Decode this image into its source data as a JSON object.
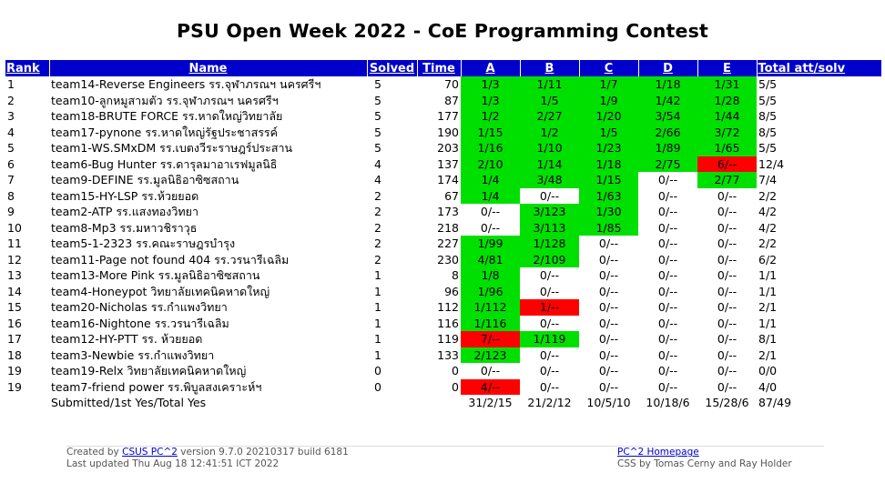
{
  "title": "PSU Open Week 2022 - CoE Programming Contest",
  "headers": [
    "Rank",
    "Name",
    "Solved",
    "Time",
    "A",
    "B",
    "C",
    "D",
    "E",
    "Total att/solv"
  ],
  "rows": [
    {
      "rank": "1",
      "name": "team14-Reverse Engineers รร.จุฬาภรณฯ นครศรีฯ",
      "solved": "5",
      "time": "70",
      "p": [
        "1/3",
        "1/11",
        "1/7",
        "1/18",
        "1/31"
      ],
      "s": [
        "y",
        "y",
        "y",
        "y",
        "y"
      ],
      "total": "5/5"
    },
    {
      "rank": "2",
      "name": "team10-ลูกหมูสามตัว รร.จุฬาภรณฯ นครศรีฯ",
      "solved": "5",
      "time": "87",
      "p": [
        "1/3",
        "1/5",
        "1/9",
        "1/42",
        "1/28"
      ],
      "s": [
        "y",
        "y",
        "y",
        "y",
        "y"
      ],
      "total": "5/5"
    },
    {
      "rank": "3",
      "name": "team18-BRUTE FORCE รร.หาดใหญ่วิทยาลัย",
      "solved": "5",
      "time": "177",
      "p": [
        "1/2",
        "2/27",
        "1/20",
        "3/54",
        "1/44"
      ],
      "s": [
        "y",
        "y",
        "y",
        "y",
        "y"
      ],
      "total": "8/5"
    },
    {
      "rank": "4",
      "name": "team17-pynone รร.หาดใหญ่รัฐประชาสรรค์",
      "solved": "5",
      "time": "190",
      "p": [
        "1/15",
        "1/2",
        "1/5",
        "2/66",
        "3/72"
      ],
      "s": [
        "y",
        "y",
        "y",
        "y",
        "y"
      ],
      "total": "8/5"
    },
    {
      "rank": "5",
      "name": "team1-WS.SMxDM รร.เบตงวีระราษฎร์ประสาน",
      "solved": "5",
      "time": "203",
      "p": [
        "1/16",
        "1/10",
        "1/23",
        "1/89",
        "1/65"
      ],
      "s": [
        "y",
        "y",
        "y",
        "y",
        "y"
      ],
      "total": "5/5"
    },
    {
      "rank": "6",
      "name": "team6-Bug Hunter รร.ดารุลมาอาเรฟมูลนิธิ",
      "solved": "4",
      "time": "137",
      "p": [
        "2/10",
        "1/14",
        "1/18",
        "2/75",
        "6/--"
      ],
      "s": [
        "y",
        "y",
        "y",
        "y",
        "n"
      ],
      "total": "12/4"
    },
    {
      "rank": "7",
      "name": "team9-DEFINE รร.มูลนิธิอาซิซสถาน",
      "solved": "4",
      "time": "174",
      "p": [
        "1/4",
        "3/48",
        "1/15",
        "0/--",
        "2/77"
      ],
      "s": [
        "y",
        "y",
        "y",
        "e",
        "y"
      ],
      "total": "7/4"
    },
    {
      "rank": "8",
      "name": "team15-HY-LSP รร.ห้วยยอด",
      "solved": "2",
      "time": "67",
      "p": [
        "1/4",
        "0/--",
        "1/63",
        "0/--",
        "0/--"
      ],
      "s": [
        "y",
        "e",
        "y",
        "e",
        "e"
      ],
      "total": "2/2"
    },
    {
      "rank": "9",
      "name": "team2-ATP รร.แสงทองวิทยา",
      "solved": "2",
      "time": "173",
      "p": [
        "0/--",
        "3/123",
        "1/30",
        "0/--",
        "0/--"
      ],
      "s": [
        "e",
        "y",
        "y",
        "e",
        "e"
      ],
      "total": "4/2"
    },
    {
      "rank": "10",
      "name": "team8-Mp3 รร.มหาวชิราวุธ",
      "solved": "2",
      "time": "218",
      "p": [
        "0/--",
        "3/113",
        "1/85",
        "0/--",
        "0/--"
      ],
      "s": [
        "e",
        "y",
        "y",
        "e",
        "e"
      ],
      "total": "4/2"
    },
    {
      "rank": "11",
      "name": "team5-1-2323 รร.คณะราษฎรบำรุง",
      "solved": "2",
      "time": "227",
      "p": [
        "1/99",
        "1/128",
        "0/--",
        "0/--",
        "0/--"
      ],
      "s": [
        "y",
        "y",
        "e",
        "e",
        "e"
      ],
      "total": "2/2"
    },
    {
      "rank": "12",
      "name": "team11-Page not found 404 รร.วรนารีเฉลิม",
      "solved": "2",
      "time": "230",
      "p": [
        "4/81",
        "2/109",
        "0/--",
        "0/--",
        "0/--"
      ],
      "s": [
        "y",
        "y",
        "e",
        "e",
        "e"
      ],
      "total": "6/2"
    },
    {
      "rank": "13",
      "name": "team13-More Pink รร.มูลนิธิอาซิซสถาน",
      "solved": "1",
      "time": "8",
      "p": [
        "1/8",
        "0/--",
        "0/--",
        "0/--",
        "0/--"
      ],
      "s": [
        "y",
        "e",
        "e",
        "e",
        "e"
      ],
      "total": "1/1"
    },
    {
      "rank": "14",
      "name": "team4-Honeypot วิทยาลัยเทคนิคหาดใหญ่",
      "solved": "1",
      "time": "96",
      "p": [
        "1/96",
        "0/--",
        "0/--",
        "0/--",
        "0/--"
      ],
      "s": [
        "y",
        "e",
        "e",
        "e",
        "e"
      ],
      "total": "1/1"
    },
    {
      "rank": "15",
      "name": "team20-Nicholas รร.กำแพงวิทยา",
      "solved": "1",
      "time": "112",
      "p": [
        "1/112",
        "1/--",
        "0/--",
        "0/--",
        "0/--"
      ],
      "s": [
        "y",
        "n",
        "e",
        "e",
        "e"
      ],
      "total": "2/1"
    },
    {
      "rank": "16",
      "name": "team16-Nightone รร.วรนารีเฉลิม",
      "solved": "1",
      "time": "116",
      "p": [
        "1/116",
        "0/--",
        "0/--",
        "0/--",
        "0/--"
      ],
      "s": [
        "y",
        "e",
        "e",
        "e",
        "e"
      ],
      "total": "1/1"
    },
    {
      "rank": "17",
      "name": "team12-HY-PTT รร. ห้วยยอด",
      "solved": "1",
      "time": "119",
      "p": [
        "7/--",
        "1/119",
        "0/--",
        "0/--",
        "0/--"
      ],
      "s": [
        "n",
        "y",
        "e",
        "e",
        "e"
      ],
      "total": "8/1"
    },
    {
      "rank": "18",
      "name": "team3-Newbie รร.กำแพงวิทยา",
      "solved": "1",
      "time": "133",
      "p": [
        "2/123",
        "0/--",
        "0/--",
        "0/--",
        "0/--"
      ],
      "s": [
        "y",
        "e",
        "e",
        "e",
        "e"
      ],
      "total": "2/1"
    },
    {
      "rank": "19",
      "name": "team19-Relx วิทยาลัยเทคนิคหาดใหญ่",
      "solved": "0",
      "time": "0",
      "p": [
        "0/--",
        "0/--",
        "0/--",
        "0/--",
        "0/--"
      ],
      "s": [
        "e",
        "e",
        "e",
        "e",
        "e"
      ],
      "total": "0/0"
    },
    {
      "rank": "19",
      "name": "team7-friend power รร.พิบูลสงเคราะห์ฯ",
      "solved": "0",
      "time": "0",
      "p": [
        "4/--",
        "0/--",
        "0/--",
        "0/--",
        "0/--"
      ],
      "s": [
        "n",
        "e",
        "e",
        "e",
        "e"
      ],
      "total": "4/0"
    }
  ],
  "summary": {
    "label": "Submitted/1st Yes/Total Yes",
    "p": [
      "31/2/15",
      "21/2/12",
      "10/5/10",
      "10/18/6",
      "15/28/6"
    ],
    "total": "87/49"
  },
  "footer": {
    "created_prefix": "Created by ",
    "created_link": "CSUS PC^2",
    "created_suffix": " version 9.7.0 20210317 build 6181",
    "updated": "Last updated Thu Aug 18 12:41:51 ICT 2022",
    "home_link": "PC^2 Homepage",
    "css_credit": "CSS by Tomas Cerny and Ray Holder"
  },
  "colors": {
    "header": "#0000cc",
    "solved": "#00e000",
    "failed": "#ff0000"
  }
}
